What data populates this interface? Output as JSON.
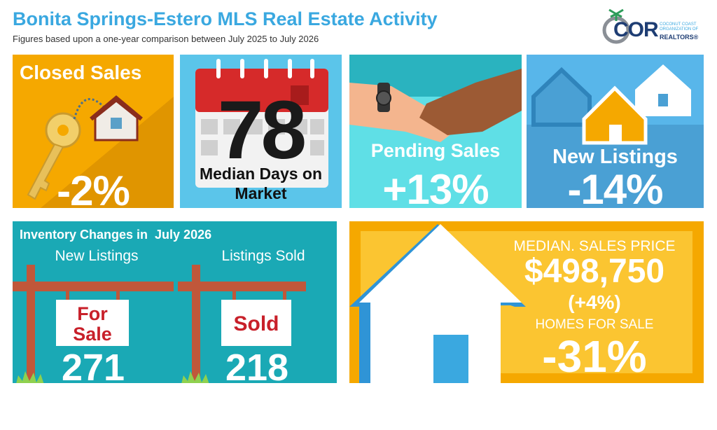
{
  "header": {
    "title": "Bonita Springs-Estero MLS Real Estate Activity",
    "subtitle": "Figures based upon a one-year comparison between July 2025 to July 2026"
  },
  "logo": {
    "mark": "COR",
    "org": "COCONUT COAST ORGANIZATION OF",
    "realtors": "REALTORS®"
  },
  "closed_sales": {
    "title": "Closed Sales",
    "value": "-2%"
  },
  "days_on_market": {
    "value": "78",
    "label": "Median Days on Market"
  },
  "pending_sales": {
    "title": "Pending Sales",
    "value": "+13%"
  },
  "new_listings": {
    "title": "New Listings",
    "value": "-14%"
  },
  "inventory": {
    "title": "Inventory Changes in  July 2026",
    "columns": [
      {
        "heading": "New Listings",
        "sign": "For Sale",
        "value": "271"
      },
      {
        "heading": "Listings Sold",
        "sign": "Sold",
        "value": "218"
      }
    ]
  },
  "price": {
    "label": "MEDIAN. SALES PRICE",
    "value": "$498,750",
    "change": "(+4%)",
    "homes_label": "HOMES FOR SALE",
    "homes_change": "-31%"
  }
}
